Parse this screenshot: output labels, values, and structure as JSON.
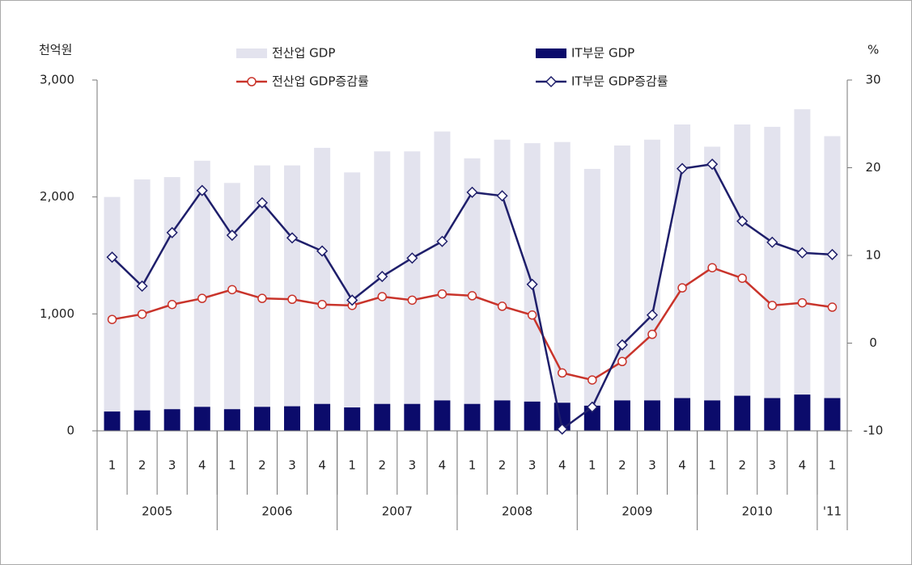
{
  "chart_data": {
    "type": "bar",
    "y_label": "천억원",
    "y2_label": "%",
    "categories": [
      "1",
      "2",
      "3",
      "4",
      "1",
      "2",
      "3",
      "4",
      "1",
      "2",
      "3",
      "4",
      "1",
      "2",
      "3",
      "4",
      "1",
      "2",
      "3",
      "4",
      "1",
      "2",
      "3",
      "4",
      "1"
    ],
    "x_groups": [
      {
        "label": "2005",
        "count": 4
      },
      {
        "label": "2006",
        "count": 4
      },
      {
        "label": "2007",
        "count": 4
      },
      {
        "label": "2008",
        "count": 4
      },
      {
        "label": "2009",
        "count": 4
      },
      {
        "label": "2010",
        "count": 4
      },
      {
        "label": "'11",
        "count": 1
      }
    ],
    "ylim": [
      0,
      3000
    ],
    "yticks": [
      0,
      {
        "value": 1000,
        "label": "1,000"
      },
      {
        "value": 2000,
        "label": "2,000"
      },
      {
        "value": 3000,
        "label": "3,000"
      }
    ],
    "y2lim": [
      -10,
      30
    ],
    "y2ticks": [
      -10,
      0,
      10,
      20,
      30
    ],
    "series": [
      {
        "name": "전산업 GDP",
        "type": "bar",
        "color": "#e3e3ee",
        "values": [
          2000,
          2150,
          2170,
          2310,
          2120,
          2270,
          2270,
          2420,
          2210,
          2390,
          2390,
          2560,
          2330,
          2490,
          2460,
          2470,
          2240,
          2440,
          2490,
          2620,
          2430,
          2620,
          2600,
          2750,
          2520
        ]
      },
      {
        "name": "IT부문 GDP",
        "type": "bar",
        "color": "#0b0b6b",
        "values": [
          165,
          175,
          185,
          205,
          185,
          205,
          210,
          230,
          200,
          230,
          230,
          260,
          230,
          260,
          250,
          240,
          215,
          260,
          260,
          280,
          260,
          300,
          280,
          310,
          280
        ]
      },
      {
        "name": "전산업 GDP증감률",
        "type": "line",
        "marker": "circle",
        "axis": "y2",
        "color": "#c9342b",
        "values": [
          2.7,
          3.3,
          4.4,
          5.1,
          6.1,
          5.1,
          5.0,
          4.4,
          4.3,
          5.3,
          4.9,
          5.6,
          5.4,
          4.2,
          3.2,
          -3.4,
          -4.2,
          -2.1,
          1.0,
          6.3,
          8.6,
          7.4,
          4.3,
          4.6,
          4.1
        ]
      },
      {
        "name": "IT부문 GDP증감률",
        "type": "line",
        "marker": "diamond",
        "axis": "y2",
        "color": "#1f1f6b",
        "values": [
          9.8,
          6.5,
          12.6,
          17.4,
          12.3,
          16.0,
          12.0,
          10.5,
          4.9,
          7.6,
          9.7,
          11.6,
          17.2,
          16.8,
          6.7,
          -9.8,
          -7.3,
          -0.2,
          3.2,
          19.9,
          20.4,
          13.9,
          11.5,
          10.3,
          10.1
        ]
      }
    ]
  }
}
